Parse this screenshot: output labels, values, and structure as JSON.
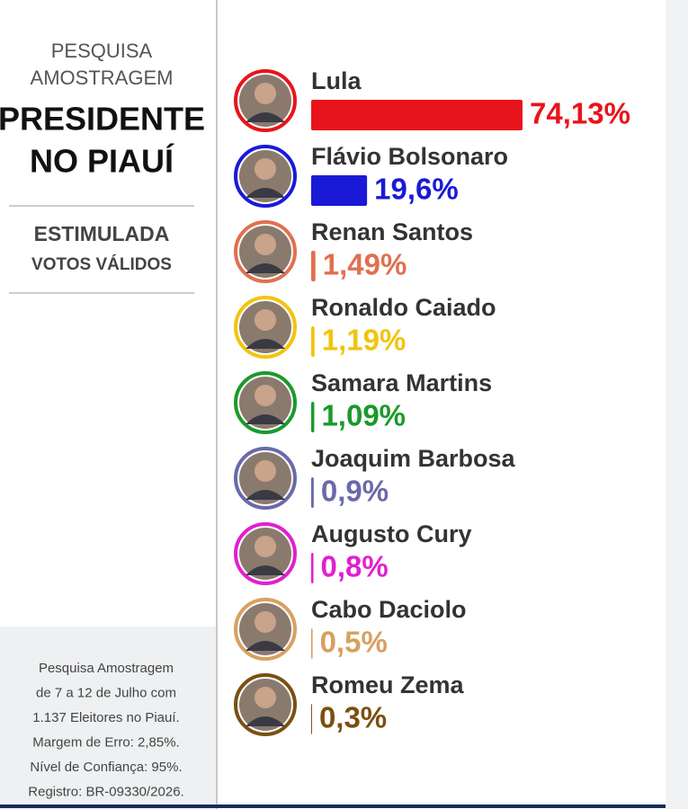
{
  "chart_data": {
    "type": "bar",
    "header": [
      "PESQUISA",
      "AMOSTRAGEM"
    ],
    "title": [
      "PRESIDENTE",
      "NO PIAUÍ"
    ],
    "subtitle": [
      "ESTIMULADA",
      "VOTOS VÁLIDOS"
    ],
    "categories": [
      "Lula",
      "Flávio Bolsonaro",
      "Renan Santos",
      "Ronaldo Caiado",
      "Samara Martins",
      "Joaquim Barbosa",
      "Augusto Cury",
      "Cabo Daciolo",
      "Romeu Zema"
    ],
    "values": [
      74.13,
      19.6,
      1.49,
      1.19,
      1.09,
      0.9,
      0.8,
      0.5,
      0.3
    ],
    "value_labels": [
      "74,13%",
      "19,6%",
      "1,49%",
      "1,19%",
      "1,09%",
      "0,9%",
      "0,8%",
      "0,5%",
      "0,3%"
    ],
    "colors": [
      "#e8141b",
      "#1a1ad6",
      "#e07050",
      "#f2c40e",
      "#1a9a2a",
      "#6a6aa8",
      "#e020d0",
      "#d8a060",
      "#7a5010"
    ],
    "footnote": [
      "Pesquisa Amostragem",
      "de 7 a 12 de Julho com",
      "1.137 Eleitores no Piauí.",
      "Margem de Erro: 2,85%.",
      "Nível de Confiança: 95%.",
      "Registro: BR-09330/2026."
    ]
  }
}
